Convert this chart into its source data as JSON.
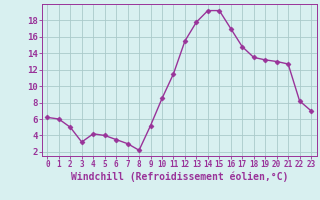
{
  "x": [
    0,
    1,
    2,
    3,
    4,
    5,
    6,
    7,
    8,
    9,
    10,
    11,
    12,
    13,
    14,
    15,
    16,
    17,
    18,
    19,
    20,
    21,
    22,
    23
  ],
  "y": [
    6.2,
    6.0,
    5.0,
    3.2,
    4.2,
    4.0,
    3.5,
    3.0,
    2.2,
    5.2,
    8.5,
    11.5,
    15.5,
    17.8,
    19.2,
    19.2,
    17.0,
    14.8,
    13.5,
    13.2,
    13.0,
    12.7,
    8.2,
    7.0
  ],
  "line_color": "#993399",
  "marker": "D",
  "markersize": 2.5,
  "linewidth": 1.0,
  "bg_color": "#d8f0f0",
  "grid_color": "#aacaca",
  "xlabel": "Windchill (Refroidissement éolien,°C)",
  "xlabel_fontsize": 7,
  "tick_fontsize": 6.5,
  "ylim": [
    1.5,
    20.0
  ],
  "yticks": [
    2,
    4,
    6,
    8,
    10,
    12,
    14,
    16,
    18
  ],
  "xlim": [
    -0.5,
    23.5
  ],
  "xticks": [
    0,
    1,
    2,
    3,
    4,
    5,
    6,
    7,
    8,
    9,
    10,
    11,
    12,
    13,
    14,
    15,
    16,
    17,
    18,
    19,
    20,
    21,
    22,
    23
  ],
  "spine_color": "#993399",
  "axis_bg": "#d8f0f0"
}
